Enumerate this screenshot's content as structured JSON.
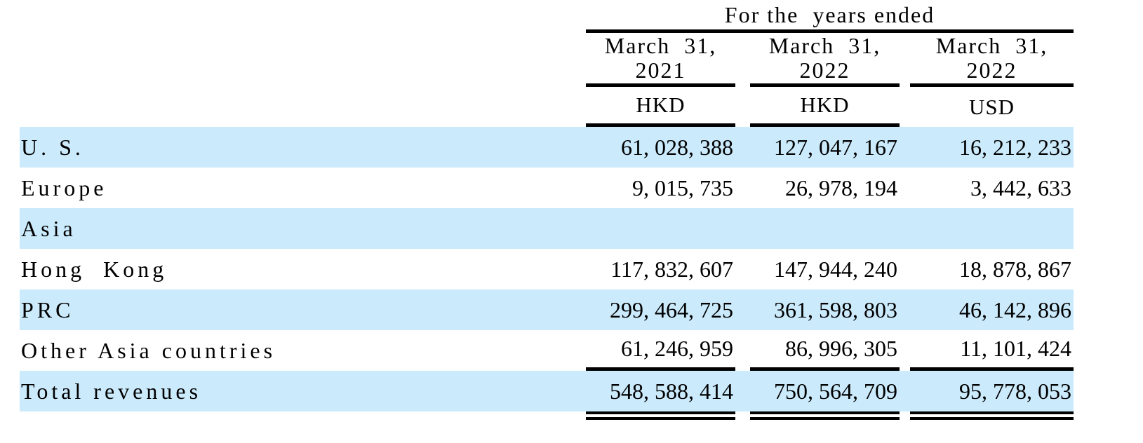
{
  "colors": {
    "row_highlight": "#cbeafb",
    "rule": "#000000",
    "text": "#000000",
    "background": "#ffffff"
  },
  "table": {
    "title": "For the  years ended",
    "columns": [
      {
        "period": "March  31,",
        "year": "2021",
        "currency": "HKD"
      },
      {
        "period": "March  31,",
        "year": "2022",
        "currency": "HKD"
      },
      {
        "period": "March  31,",
        "year": "2022",
        "currency": "USD"
      }
    ],
    "rows": [
      {
        "label": "U. S.",
        "values": [
          "61, 028, 388",
          "127, 047, 167",
          "16, 212, 233"
        ]
      },
      {
        "label": "Europe",
        "values": [
          "9, 015, 735",
          "26, 978, 194",
          "3, 442, 633"
        ]
      },
      {
        "label": "Asia",
        "values": [
          "",
          "",
          ""
        ]
      },
      {
        "label": "Hong  Kong",
        "values": [
          "117, 832, 607",
          "147, 944, 240",
          "18, 878, 867"
        ]
      },
      {
        "label": "PRC",
        "values": [
          "299, 464, 725",
          "361, 598, 803",
          "46, 142, 896"
        ]
      },
      {
        "label": "Other Asia countries",
        "values": [
          "61, 246, 959",
          "86, 996, 305",
          "11, 101, 424"
        ]
      },
      {
        "label": "Total revenues",
        "values": [
          "548, 588, 414",
          "750, 564, 709",
          "95, 778, 053"
        ]
      }
    ]
  },
  "chart_data": {
    "type": "table",
    "title": "For the years ended",
    "columns": [
      "March 31, 2021 (HKD)",
      "March 31, 2022 (HKD)",
      "March 31, 2022 (USD)"
    ],
    "rows": [
      {
        "label": "U.S.",
        "values": [
          61028388,
          127047167,
          16212233
        ]
      },
      {
        "label": "Europe",
        "values": [
          9015735,
          26978194,
          3442633
        ]
      },
      {
        "label": "Asia",
        "values": [
          null,
          null,
          null
        ]
      },
      {
        "label": "Hong Kong",
        "values": [
          117832607,
          147944240,
          18878867
        ]
      },
      {
        "label": "PRC",
        "values": [
          299464725,
          361598803,
          46142896
        ]
      },
      {
        "label": "Other Asia countries",
        "values": [
          61246959,
          86996305,
          11101424
        ]
      },
      {
        "label": "Total revenues",
        "values": [
          548588414,
          750564709,
          95778053
        ]
      }
    ]
  }
}
